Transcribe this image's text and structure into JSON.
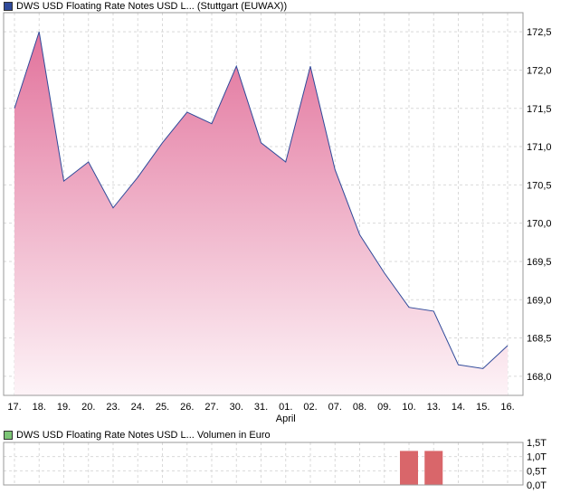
{
  "legend_price": {
    "label": "DWS USD Floating Rate Notes USD L... (Stuttgart (EUWAX))",
    "color": "#2f4a9a"
  },
  "legend_volume": {
    "label": "DWS USD Floating Rate Notes USD L... Volumen in Euro",
    "color": "#7cc576"
  },
  "month_label": "April",
  "chart_data": [
    {
      "type": "area",
      "title": "DWS USD Floating Rate Notes USD L... (Stuttgart (EUWAX))",
      "categories": [
        "17.",
        "18.",
        "19.",
        "20.",
        "23.",
        "24.",
        "25.",
        "26.",
        "27.",
        "30.",
        "31.",
        "01.",
        "02.",
        "07.",
        "08.",
        "09.",
        "10.",
        "13.",
        "14.",
        "15.",
        "16."
      ],
      "values": [
        171.5,
        172.5,
        170.55,
        170.8,
        170.2,
        170.6,
        171.05,
        171.45,
        171.3,
        172.05,
        171.05,
        170.8,
        172.05,
        170.7,
        169.85,
        169.35,
        168.9,
        168.85,
        168.15,
        168.1,
        168.4
      ],
      "ylim": [
        167.75,
        172.75
      ],
      "yticks": [
        "172,5",
        "172,0",
        "171,5",
        "171,0",
        "170,5",
        "170,0",
        "169,5",
        "169,0",
        "168,5",
        "168,0"
      ],
      "ytick_values": [
        172.5,
        172.0,
        171.5,
        171.0,
        170.5,
        170.0,
        169.5,
        169.0,
        168.5,
        168.0
      ],
      "line_color": "#2f4a9a",
      "fill_top_color": "#e2739c",
      "fill_bottom_color": "#fdf3f7",
      "grid": true
    },
    {
      "type": "bar",
      "title": "DWS USD Floating Rate Notes USD L... Volumen in Euro",
      "categories": [
        "17.",
        "18.",
        "19.",
        "20.",
        "23.",
        "24.",
        "25.",
        "26.",
        "27.",
        "30.",
        "31.",
        "01.",
        "02.",
        "07.",
        "08.",
        "09.",
        "10.",
        "13.",
        "14.",
        "15.",
        "16."
      ],
      "values": [
        0,
        0,
        0,
        0,
        0,
        0,
        0,
        0,
        0,
        0,
        0,
        0,
        0,
        0,
        0,
        0,
        1.2,
        1.2,
        0,
        0,
        0
      ],
      "ylim": [
        0,
        1.5
      ],
      "yticks": [
        "1,5T",
        "1,0T",
        "0,5T",
        "0,0T"
      ],
      "ytick_values": [
        1.5,
        1.0,
        0.5,
        0.0
      ],
      "bar_color": "#d9666a",
      "grid": true
    }
  ]
}
